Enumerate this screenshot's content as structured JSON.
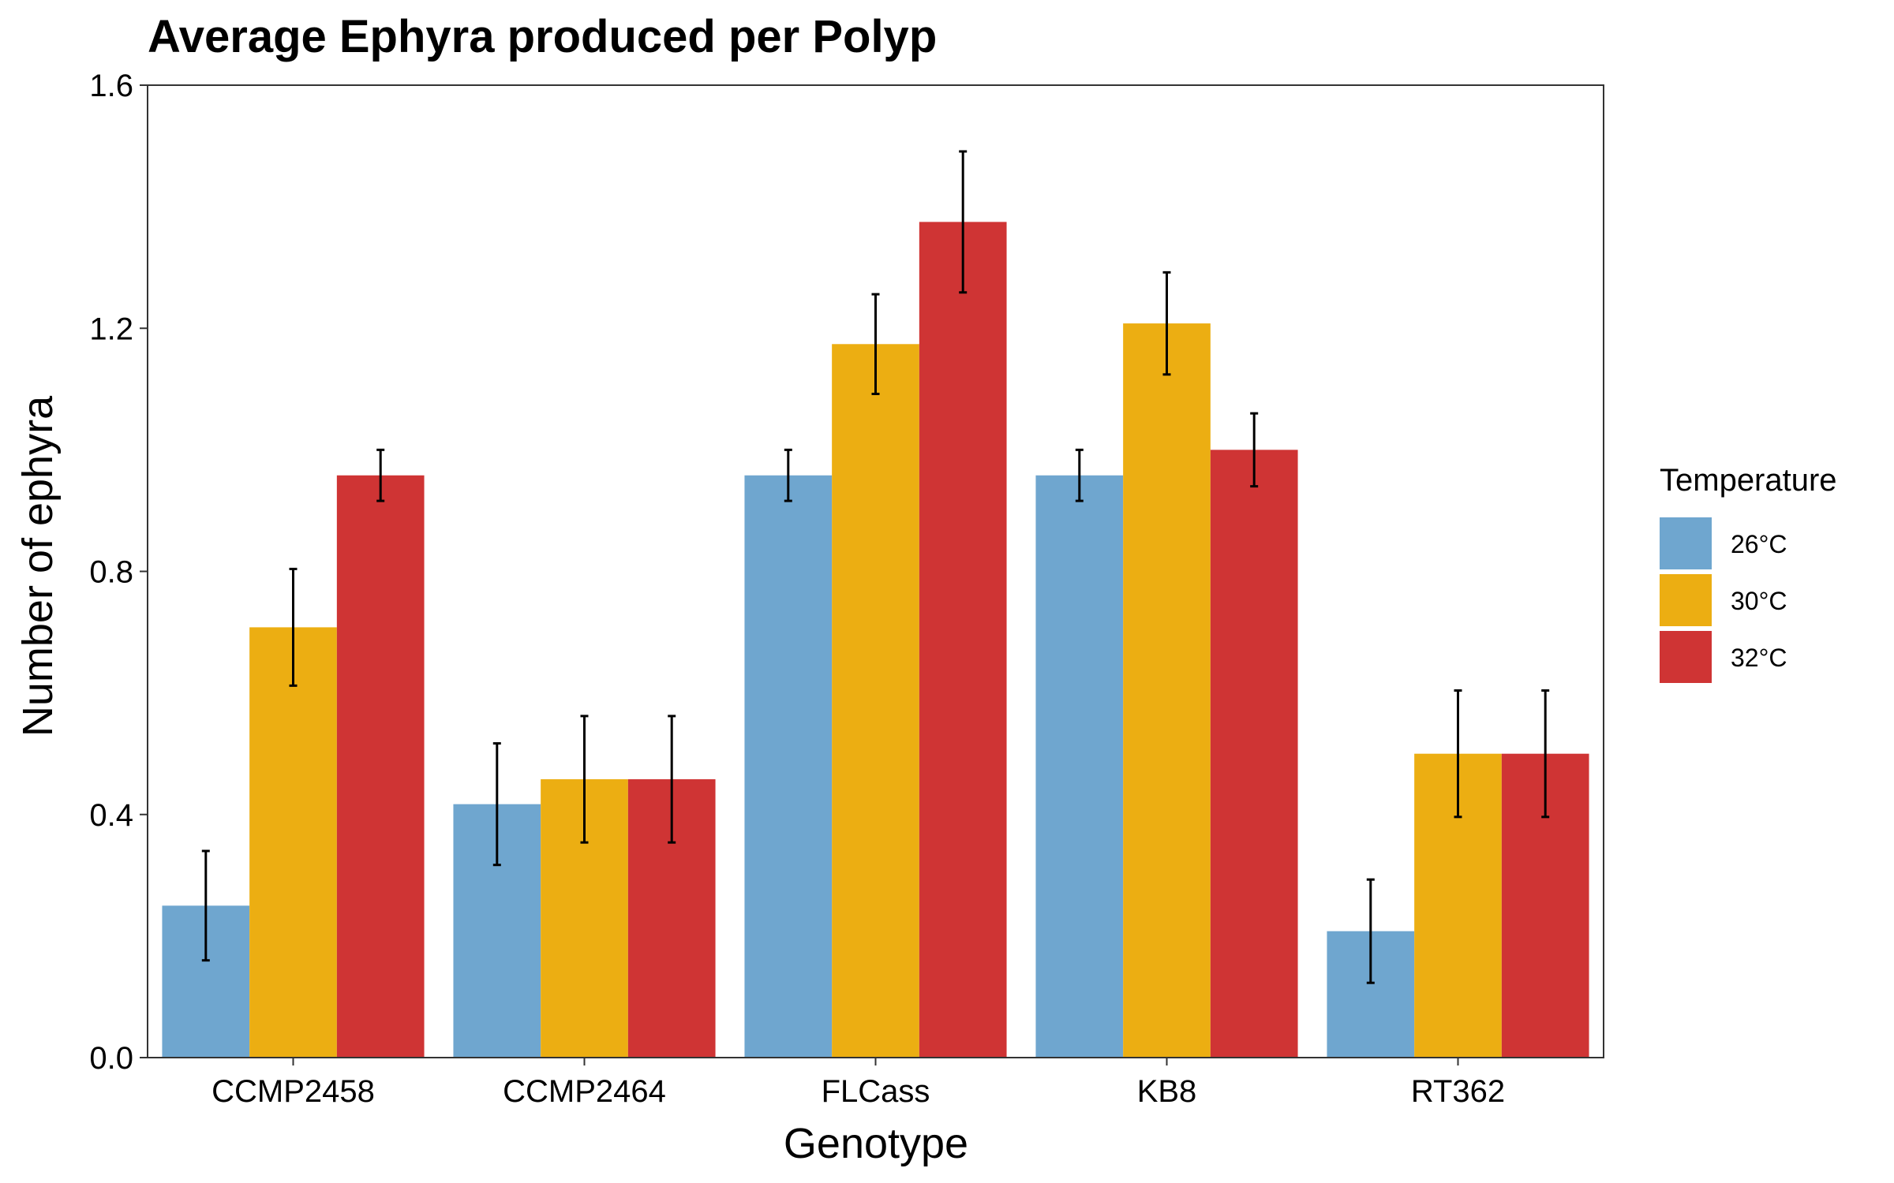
{
  "chart_data": {
    "type": "bar",
    "title": "Average Ephyra produced per Polyp",
    "xlabel": "Genotype",
    "ylabel": "Number of ephyra",
    "ylim": [
      0,
      1.6
    ],
    "yticks": [
      "0.0",
      "0.4",
      "0.8",
      "1.2",
      "1.6"
    ],
    "categories": [
      "CCMP2458",
      "CCMP2464",
      "FLCass",
      "KB8",
      "RT362"
    ],
    "legend": {
      "title": "Temperature",
      "position": "right"
    },
    "grid": false,
    "series": [
      {
        "name": "26°C",
        "color": "#6fa6cf",
        "values": [
          0.25,
          0.417,
          0.958,
          0.958,
          0.208
        ],
        "error": [
          0.09,
          0.1,
          0.042,
          0.042,
          0.085
        ]
      },
      {
        "name": "30°C",
        "color": "#ecae12",
        "values": [
          0.708,
          0.458,
          1.174,
          1.208,
          0.5
        ],
        "error": [
          0.096,
          0.104,
          0.082,
          0.084,
          0.104
        ]
      },
      {
        "name": "32°C",
        "color": "#cf3434",
        "values": [
          0.958,
          0.458,
          1.375,
          1.0,
          0.5
        ],
        "error": [
          0.042,
          0.104,
          0.116,
          0.06,
          0.104
        ]
      }
    ]
  }
}
